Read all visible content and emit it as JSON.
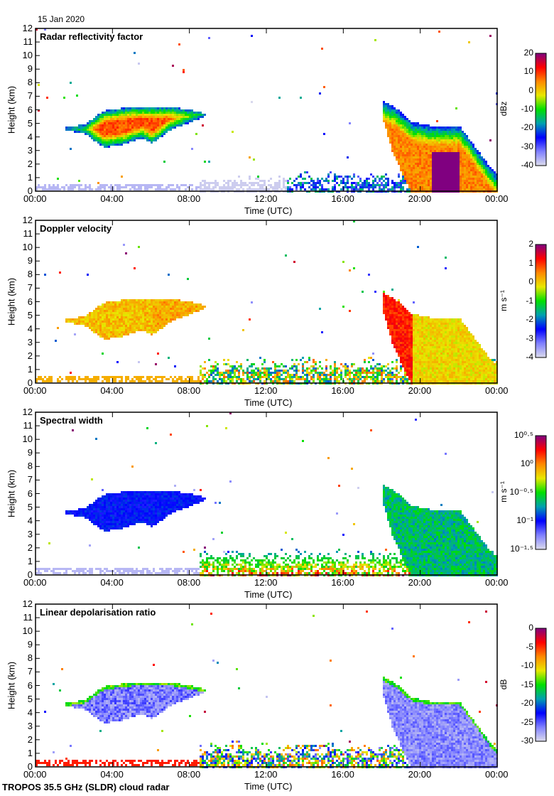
{
  "date": "15 Jan 2020",
  "footer": "TROPOS 35.5 GHz (SLDR) cloud radar",
  "chart_data": [
    {
      "type": "heatmap",
      "title": "Radar reflectivity factor",
      "xlabel": "Time (UTC)",
      "ylabel": "Height (km)",
      "xticks": [
        "00:00",
        "04:00",
        "08:00",
        "12:00",
        "16:00",
        "20:00",
        "00:00"
      ],
      "yticks": [
        "0",
        "1",
        "2",
        "3",
        "4",
        "5",
        "6",
        "7",
        "8",
        "9",
        "10",
        "11",
        "12"
      ],
      "ylim": [
        0,
        12
      ],
      "xlim_hours": [
        0,
        24
      ],
      "colorbar": {
        "unit": "dBz",
        "ticks": [
          "20",
          "10",
          "0",
          "-10",
          "-20",
          "-30",
          "-40"
        ],
        "range": [
          -40,
          20
        ]
      }
    },
    {
      "type": "heatmap",
      "title": "Doppler velocity",
      "xlabel": "Time (UTC)",
      "ylabel": "Height (km)",
      "xticks": [
        "00:00",
        "04:00",
        "08:00",
        "12:00",
        "16:00",
        "20:00",
        "00:00"
      ],
      "yticks": [
        "0",
        "1",
        "2",
        "3",
        "4",
        "5",
        "6",
        "7",
        "8",
        "9",
        "10",
        "11",
        "12"
      ],
      "ylim": [
        0,
        12
      ],
      "xlim_hours": [
        0,
        24
      ],
      "colorbar": {
        "unit": "m s⁻¹",
        "ticks": [
          "2",
          "1",
          "0",
          "-1",
          "-2",
          "-3",
          "-4"
        ],
        "range": [
          -4,
          2
        ]
      }
    },
    {
      "type": "heatmap",
      "title": "Spectral width",
      "xlabel": "Time (UTC)",
      "ylabel": "Height (km)",
      "xticks": [
        "00:00",
        "04:00",
        "08:00",
        "12:00",
        "16:00",
        "20:00",
        "00:00"
      ],
      "yticks": [
        "0",
        "1",
        "2",
        "3",
        "4",
        "5",
        "6",
        "7",
        "8",
        "9",
        "10",
        "11",
        "12"
      ],
      "ylim": [
        0,
        12
      ],
      "xlim_hours": [
        0,
        24
      ],
      "colorbar": {
        "unit": "m s⁻¹",
        "ticks": [
          "10⁰·⁵",
          "10⁰",
          "10⁻⁰·⁵",
          "10⁻¹",
          "10⁻¹·⁵"
        ],
        "range": [
          -1.5,
          0.5
        ],
        "scale": "log"
      }
    },
    {
      "type": "heatmap",
      "title": "Linear depolarisation ratio",
      "xlabel": "Time (UTC)",
      "ylabel": "Height (km)",
      "xticks": [
        "00:00",
        "04:00",
        "08:00",
        "12:00",
        "16:00",
        "20:00",
        "00:00"
      ],
      "yticks": [
        "0",
        "1",
        "2",
        "3",
        "4",
        "5",
        "6",
        "7",
        "8",
        "9",
        "10",
        "11",
        "12"
      ],
      "ylim": [
        0,
        12
      ],
      "xlim_hours": [
        0,
        24
      ],
      "colorbar": {
        "unit": "dB",
        "ticks": [
          "0",
          "-5",
          "-10",
          "-15",
          "-20",
          "-25",
          "-30"
        ],
        "range": [
          -30,
          0
        ]
      }
    }
  ],
  "colormap": [
    "#dcdcec",
    "#8080ff",
    "#0000ff",
    "#00a0b0",
    "#00e000",
    "#e8e800",
    "#ff8800",
    "#ff0000",
    "#800080"
  ]
}
